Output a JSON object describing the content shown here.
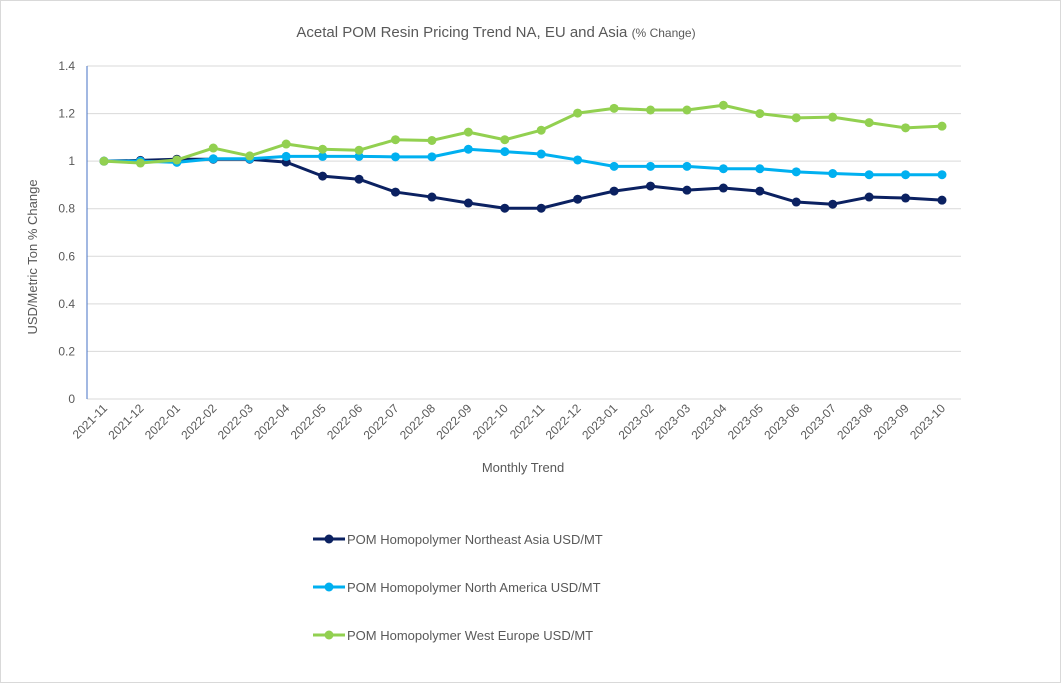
{
  "chart_data": {
    "type": "line",
    "title": "Acetal POM Resin Pricing Trend NA, EU and Asia",
    "title_suffix": "(% Change)",
    "xlabel": "Monthly Trend",
    "ylabel": "USD/Metric Ton % Change",
    "ylim": [
      0,
      1.4
    ],
    "yticks": [
      "0",
      "0.2",
      "0.4",
      "0.6",
      "0.8",
      "1",
      "1.2",
      "1.4"
    ],
    "grid": true,
    "legend_placement": "bottom",
    "categories": [
      "2021-11",
      "2021-12",
      "2022-01",
      "2022-02",
      "2022-03",
      "2022-04",
      "2022-05",
      "2022-06",
      "2022-07",
      "2022-08",
      "2022-09",
      "2022-10",
      "2022-11",
      "2022-12",
      "2023-01",
      "2023-02",
      "2023-03",
      "2023-04",
      "2023-05",
      "2023-06",
      "2023-07",
      "2023-08",
      "2023-09",
      "2023-10"
    ],
    "series": [
      {
        "name": "POM Homopolymer Northeast Asia USD/MT",
        "color": "#0b2161",
        "values": [
          1.0,
          1.003,
          1.008,
          1.008,
          1.008,
          0.996,
          0.937,
          0.924,
          0.87,
          0.849,
          0.824,
          0.802,
          0.802,
          0.84,
          0.874,
          0.895,
          0.878,
          0.887,
          0.874,
          0.828,
          0.819,
          0.849,
          0.845,
          0.836
        ]
      },
      {
        "name": "POM Homopolymer North America USD/MT",
        "color": "#00b0f0",
        "values": [
          1.0,
          1.0,
          0.995,
          1.01,
          1.01,
          1.02,
          1.02,
          1.02,
          1.018,
          1.018,
          1.05,
          1.04,
          1.03,
          1.005,
          0.978,
          0.978,
          0.978,
          0.968,
          0.968,
          0.955,
          0.948,
          0.943,
          0.943,
          0.943
        ]
      },
      {
        "name": "POM Homopolymer West Europe USD/MT",
        "color": "#92d050",
        "values": [
          1.0,
          0.992,
          1.005,
          1.055,
          1.022,
          1.072,
          1.05,
          1.046,
          1.09,
          1.087,
          1.122,
          1.09,
          1.13,
          1.202,
          1.222,
          1.215,
          1.215,
          1.235,
          1.2,
          1.182,
          1.185,
          1.162,
          1.14,
          1.147
        ]
      }
    ]
  }
}
